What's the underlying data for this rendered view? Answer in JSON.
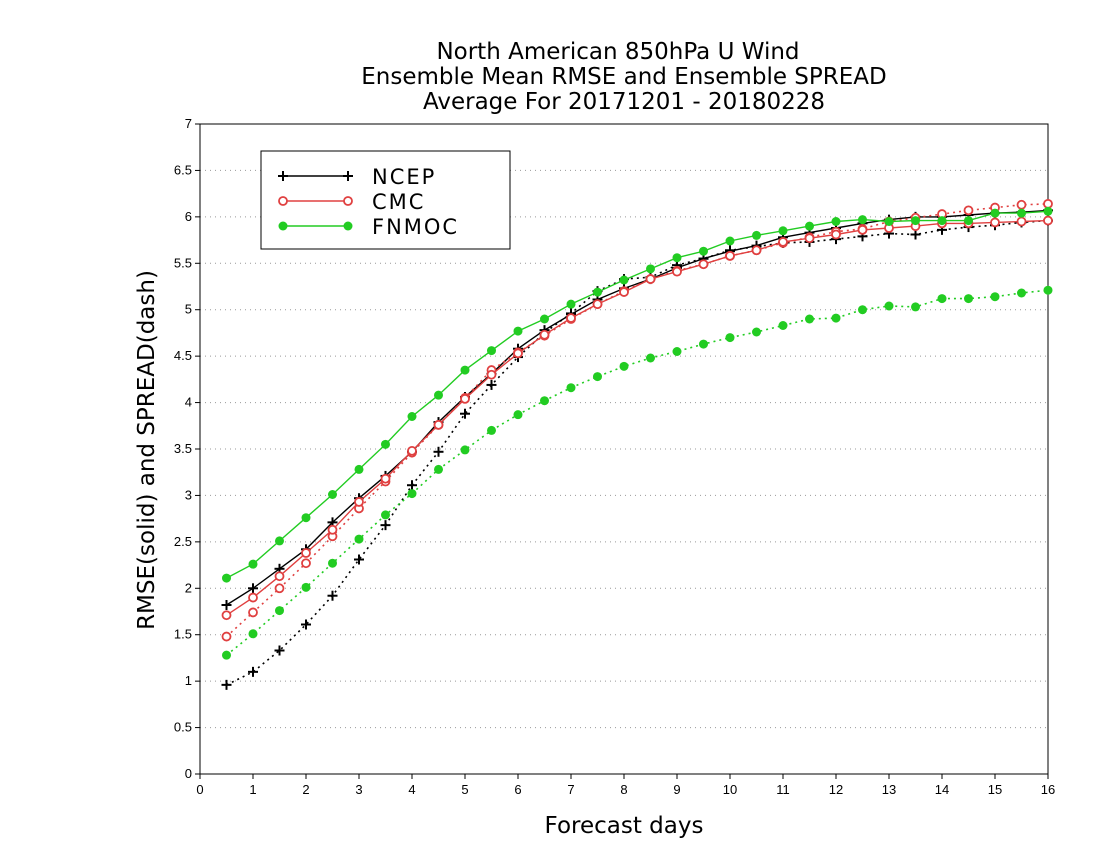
{
  "chart_data": {
    "type": "line",
    "title": [
      "North American 850hPa U Wind",
      "Ensemble Mean RMSE and Ensemble SPREAD",
      "Average For 20171201 - 20180228"
    ],
    "xlabel": "Forecast days",
    "ylabel": "RMSE(solid) and SPREAD(dash)",
    "xlim": [
      0,
      16
    ],
    "ylim": [
      0,
      7
    ],
    "xticks": [
      "0",
      "1",
      "2",
      "3",
      "4",
      "5",
      "6",
      "7",
      "8",
      "9",
      "10",
      "11",
      "12",
      "13",
      "14",
      "15",
      "16"
    ],
    "yticks": [
      "0",
      "0.5",
      "1",
      "1.5",
      "2",
      "2.5",
      "3",
      "3.5",
      "4",
      "4.5",
      "5",
      "5.5",
      "6",
      "6.5",
      "7"
    ],
    "grid": true,
    "legend_position": "top-left",
    "x": [
      0.5,
      1,
      1.5,
      2,
      2.5,
      3,
      3.5,
      4,
      4.5,
      5,
      5.5,
      6,
      6.5,
      7,
      7.5,
      8,
      8.5,
      9,
      9.5,
      10,
      10.5,
      11,
      11.5,
      12,
      12.5,
      13,
      13.5,
      14,
      14.5,
      15,
      15.5,
      16
    ],
    "series": [
      {
        "name": "NCEP",
        "color": "#000000",
        "marker": "plus",
        "rmse": [
          1.82,
          2.0,
          2.21,
          2.42,
          2.71,
          2.97,
          3.21,
          3.47,
          3.79,
          4.06,
          4.31,
          4.58,
          4.78,
          4.95,
          5.11,
          5.23,
          5.33,
          5.45,
          5.55,
          5.63,
          5.69,
          5.78,
          5.83,
          5.88,
          5.93,
          5.97,
          6.0,
          6.0,
          6.02,
          6.04,
          6.05,
          6.07
        ],
        "spread": [
          0.96,
          1.1,
          1.33,
          1.61,
          1.92,
          2.31,
          2.68,
          3.11,
          3.47,
          3.88,
          4.19,
          4.49,
          4.75,
          4.96,
          5.2,
          5.33,
          5.35,
          5.48,
          5.55,
          5.64,
          5.68,
          5.72,
          5.73,
          5.76,
          5.79,
          5.82,
          5.81,
          5.86,
          5.89,
          5.91,
          5.94,
          5.96
        ]
      },
      {
        "name": "CMC",
        "color": "#e04040",
        "marker": "circle-open",
        "rmse": [
          1.71,
          1.9,
          2.13,
          2.38,
          2.63,
          2.93,
          3.18,
          3.48,
          3.76,
          4.04,
          4.3,
          4.53,
          4.73,
          4.91,
          5.06,
          5.19,
          5.33,
          5.41,
          5.49,
          5.58,
          5.64,
          5.73,
          5.77,
          5.81,
          5.86,
          5.88,
          5.9,
          5.93,
          5.93,
          5.94,
          5.95,
          5.96
        ],
        "spread": [
          1.48,
          1.74,
          2.0,
          2.27,
          2.56,
          2.86,
          3.15,
          3.46,
          3.76,
          4.05,
          4.35,
          4.54,
          4.72,
          4.9,
          5.06,
          5.2,
          5.33,
          5.42,
          5.49,
          5.58,
          5.64,
          5.72,
          5.78,
          5.84,
          5.87,
          5.95,
          5.99,
          6.03,
          6.07,
          6.1,
          6.13,
          6.14
        ]
      },
      {
        "name": "FNMOC",
        "color": "#22cc22",
        "marker": "circle-filled",
        "rmse": [
          2.11,
          2.26,
          2.51,
          2.76,
          3.01,
          3.28,
          3.55,
          3.85,
          4.08,
          4.35,
          4.56,
          4.77,
          4.9,
          5.06,
          5.19,
          5.32,
          5.44,
          5.56,
          5.63,
          5.74,
          5.8,
          5.85,
          5.9,
          5.95,
          5.97,
          5.95,
          5.96,
          5.96,
          5.96,
          6.04,
          6.04,
          6.06
        ],
        "spread": [
          1.28,
          1.51,
          1.76,
          2.01,
          2.27,
          2.53,
          2.79,
          3.02,
          3.28,
          3.49,
          3.7,
          3.87,
          4.02,
          4.16,
          4.28,
          4.39,
          4.48,
          4.55,
          4.63,
          4.7,
          4.76,
          4.83,
          4.9,
          4.91,
          5.0,
          5.04,
          5.03,
          5.12,
          5.12,
          5.14,
          5.18,
          5.21
        ]
      }
    ]
  }
}
